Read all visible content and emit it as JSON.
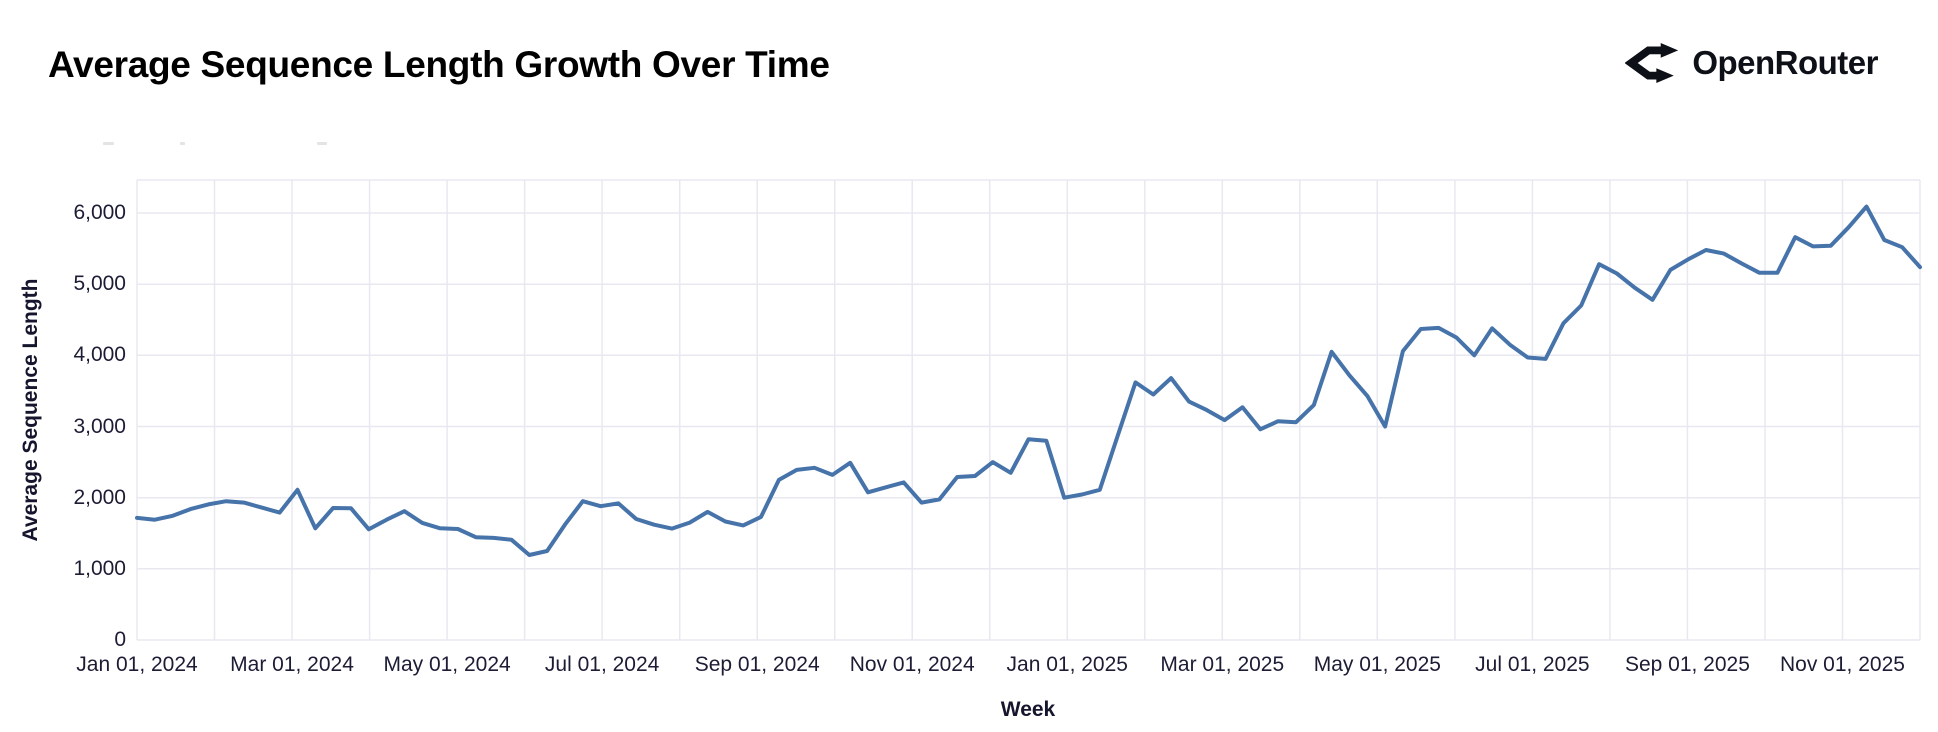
{
  "header": {
    "title": "Average Sequence Length Growth Over Time",
    "brand": "OpenRouter"
  },
  "chart_data": {
    "type": "line",
    "title": "Average Sequence Length Growth Over Time",
    "xlabel": "Week",
    "ylabel": "Average Sequence Length",
    "x_tick_labels": [
      "Jan 01, 2024",
      "Mar 01, 2024",
      "May 01, 2024",
      "Jul 01, 2024",
      "Sep 01, 2024",
      "Nov 01, 2024",
      "Jan 01, 2025",
      "Mar 01, 2025",
      "May 01, 2025",
      "Jul 01, 2025",
      "Sep 01, 2025",
      "Nov 01, 2025"
    ],
    "y_ticks": [
      0,
      1000,
      2000,
      3000,
      4000,
      5000,
      6000
    ],
    "ylim": [
      0,
      6460
    ],
    "x_range": [
      "2024-01-01",
      "2025-12-01"
    ],
    "grid": true,
    "grid_interval_x": "1 month",
    "label_interval_x": "2 months",
    "legend_position": "none",
    "line_color": "#4673A9",
    "grid_color": "#E8E8F1",
    "series": [
      {
        "name": "Average Sequence Length",
        "x": [
          "2024-01-01",
          "2024-01-08",
          "2024-01-15",
          "2024-01-22",
          "2024-01-29",
          "2024-02-05",
          "2024-02-12",
          "2024-02-19",
          "2024-02-26",
          "2024-03-04",
          "2024-03-11",
          "2024-03-18",
          "2024-03-25",
          "2024-04-01",
          "2024-04-08",
          "2024-04-15",
          "2024-04-22",
          "2024-04-29",
          "2024-05-06",
          "2024-05-13",
          "2024-05-20",
          "2024-05-27",
          "2024-06-03",
          "2024-06-10",
          "2024-06-17",
          "2024-06-24",
          "2024-07-01",
          "2024-07-08",
          "2024-07-15",
          "2024-07-22",
          "2024-07-29",
          "2024-08-05",
          "2024-08-12",
          "2024-08-19",
          "2024-08-26",
          "2024-09-02",
          "2024-09-09",
          "2024-09-16",
          "2024-09-23",
          "2024-09-30",
          "2024-10-07",
          "2024-10-14",
          "2024-10-21",
          "2024-10-28",
          "2024-11-04",
          "2024-11-11",
          "2024-11-18",
          "2024-11-25",
          "2024-12-02",
          "2024-12-09",
          "2024-12-16",
          "2024-12-23",
          "2024-12-30",
          "2025-01-06",
          "2025-01-13",
          "2025-01-20",
          "2025-01-27",
          "2025-02-03",
          "2025-02-10",
          "2025-02-17",
          "2025-02-24",
          "2025-03-03",
          "2025-03-10",
          "2025-03-17",
          "2025-03-24",
          "2025-03-31",
          "2025-04-07",
          "2025-04-14",
          "2025-04-21",
          "2025-04-28",
          "2025-05-05",
          "2025-05-12",
          "2025-05-19",
          "2025-05-26",
          "2025-06-02",
          "2025-06-09",
          "2025-06-16",
          "2025-06-23",
          "2025-06-30",
          "2025-07-07",
          "2025-07-14",
          "2025-07-21",
          "2025-07-28",
          "2025-08-04",
          "2025-08-11",
          "2025-08-18",
          "2025-08-25",
          "2025-09-01",
          "2025-09-08",
          "2025-09-15",
          "2025-09-22",
          "2025-09-29",
          "2025-10-06",
          "2025-10-13",
          "2025-10-20",
          "2025-10-27",
          "2025-11-03",
          "2025-11-10",
          "2025-11-17",
          "2025-11-24",
          "2025-12-01"
        ],
        "values": [
          1715,
          1690,
          1745,
          1840,
          1905,
          1950,
          1930,
          1860,
          1790,
          2110,
          1570,
          1855,
          1850,
          1555,
          1690,
          1810,
          1645,
          1570,
          1560,
          1445,
          1435,
          1410,
          1195,
          1250,
          1620,
          1950,
          1880,
          1920,
          1700,
          1620,
          1565,
          1650,
          1800,
          1665,
          1610,
          1730,
          2250,
          2390,
          2420,
          2320,
          2490,
          2075,
          2145,
          2215,
          1930,
          1975,
          2290,
          2305,
          2500,
          2350,
          2820,
          2800,
          2000,
          2045,
          2110,
          2870,
          3620,
          3450,
          3680,
          3350,
          3230,
          3090,
          3270,
          2960,
          3075,
          3060,
          3300,
          4050,
          3720,
          3430,
          3000,
          4060,
          4370,
          4385,
          4250,
          4000,
          4380,
          4150,
          3970,
          3950,
          4450,
          4700,
          5280,
          5150,
          4950,
          4780,
          5200,
          5350,
          5480,
          5430,
          5290,
          5160,
          5160,
          5660,
          5530,
          5540,
          5800,
          6090,
          5620,
          5520,
          5240
        ]
      }
    ]
  }
}
